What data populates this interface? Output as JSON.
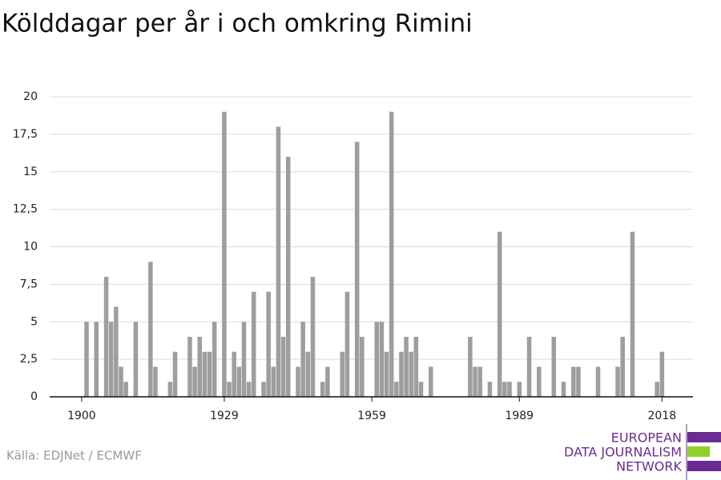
{
  "chart_data": {
    "type": "bar",
    "title": "Kölddagar per år i och omkring Rimini",
    "source": "Källa: EDJNet / ECMWF",
    "logo": [
      "EUROPEAN",
      "DATA JOURNALISM",
      "NETWORK"
    ],
    "color": "#9e9e9e",
    "grid": true,
    "x": [
      1901,
      1903,
      1905,
      1906,
      1907,
      1908,
      1909,
      1911,
      1914,
      1915,
      1918,
      1919,
      1922,
      1923,
      1924,
      1925,
      1926,
      1927,
      1929,
      1930,
      1931,
      1932,
      1933,
      1934,
      1935,
      1937,
      1938,
      1939,
      1940,
      1941,
      1942,
      1944,
      1945,
      1946,
      1947,
      1949,
      1950,
      1953,
      1954,
      1956,
      1957,
      1960,
      1961,
      1962,
      1963,
      1964,
      1965,
      1966,
      1967,
      1968,
      1969,
      1971,
      1979,
      1980,
      1981,
      1983,
      1985,
      1986,
      1987,
      1989,
      1991,
      1993,
      1996,
      1998,
      2000,
      2001,
      2005,
      2009,
      2010,
      2012,
      2017,
      2018
    ],
    "values": [
      5,
      5,
      8,
      5,
      6,
      2,
      1,
      5,
      9,
      2,
      1,
      3,
      4,
      2,
      4,
      3,
      3,
      5,
      19,
      1,
      3,
      2,
      5,
      1,
      7,
      1,
      7,
      2,
      18,
      4,
      16,
      2,
      5,
      3,
      8,
      1,
      2,
      3,
      7,
      17,
      4,
      5,
      5,
      3,
      19,
      1,
      3,
      4,
      3,
      4,
      1,
      2,
      4,
      2,
      2,
      1,
      11,
      1,
      1,
      1,
      4,
      2,
      4,
      1,
      2,
      2,
      2,
      2,
      4,
      11,
      1,
      3
    ],
    "xlim": [
      1893.5,
      2024.3
    ],
    "xticks": [
      1900,
      1929,
      1959,
      1989,
      2018
    ],
    "ylim": [
      0,
      20
    ],
    "yticks": [
      0,
      {
        "value": 2.5,
        "label": "2,5"
      },
      5,
      {
        "value": 7.5,
        "label": "7,5"
      },
      10,
      {
        "value": 12.5,
        "label": "12,5"
      },
      15,
      {
        "value": 17.5,
        "label": "17,5"
      },
      20
    ]
  }
}
